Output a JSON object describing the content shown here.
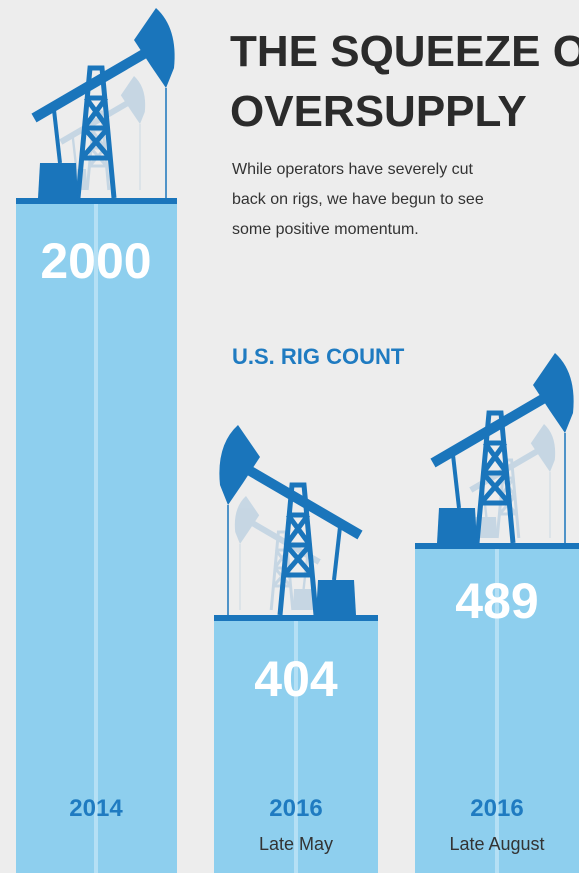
{
  "header": {
    "title_lines": [
      "THE SQUEEZE OF",
      "OVERSUPPLY"
    ],
    "paragraph_lines": [
      "While operators have severely cut",
      "back on rigs, we have begun to see",
      "some positive momentum."
    ]
  },
  "section_title": "U.S. RIG COUNT",
  "bars": [
    {
      "value": 2000,
      "year": "2014"
    },
    {
      "value": 404,
      "year": "2016",
      "period": "Late May"
    },
    {
      "value": 489,
      "year": "2016",
      "period": "Late August"
    }
  ]
}
